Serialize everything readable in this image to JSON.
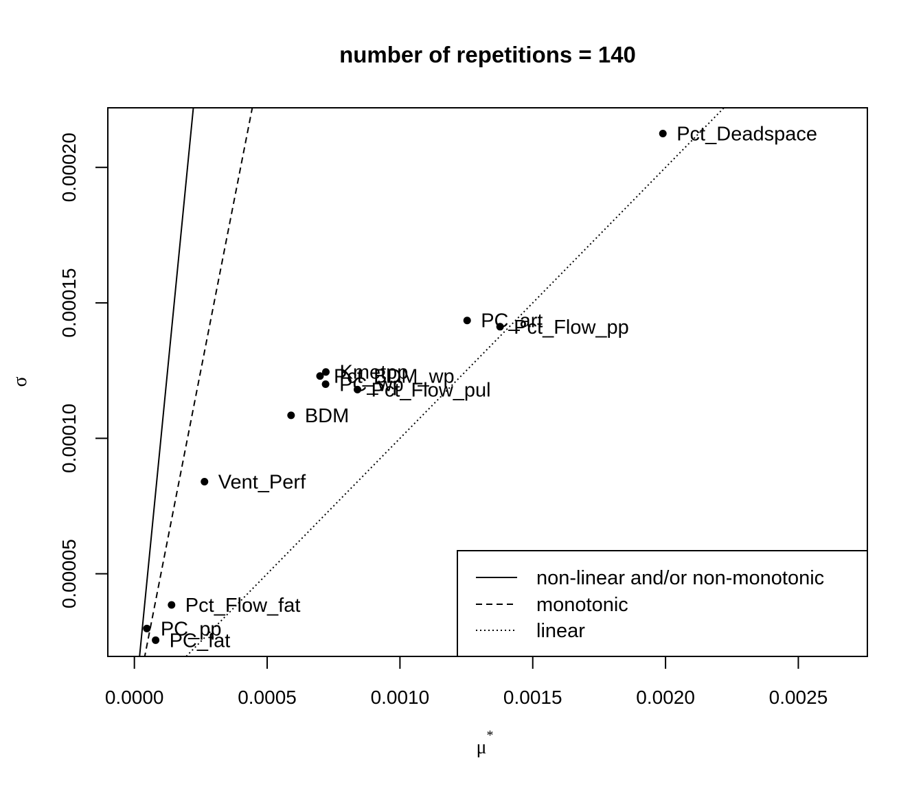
{
  "chart_data": {
    "type": "scatter",
    "title": "number of repetitions = 140",
    "xlabel": "μ",
    "xlabel_superscript": "*",
    "ylabel": "σ",
    "xlim": [
      -0.0001,
      0.00276
    ],
    "ylim": [
      1.95e-05,
      0.000222
    ],
    "x_ticks": [
      {
        "value": 0.0,
        "label": "0.0000"
      },
      {
        "value": 0.0005,
        "label": "0.0005"
      },
      {
        "value": 0.001,
        "label": "0.0010"
      },
      {
        "value": 0.0015,
        "label": "0.0015"
      },
      {
        "value": 0.002,
        "label": "0.0020"
      },
      {
        "value": 0.0025,
        "label": "0.0025"
      }
    ],
    "y_ticks": [
      {
        "value": 5e-05,
        "label": "0.00005"
      },
      {
        "value": 0.0001,
        "label": "0.00010"
      },
      {
        "value": 0.00015,
        "label": "0.00015"
      },
      {
        "value": 0.0002,
        "label": "0.00020"
      }
    ],
    "points": [
      {
        "label": "Pct_Deadspace",
        "x": 0.00199,
        "y": 0.0002125
      },
      {
        "label": "PC_art",
        "x": 0.001253,
        "y": 0.0001435
      },
      {
        "label": "Pct_Flow_pp",
        "x": 0.001377,
        "y": 0.0001412
      },
      {
        "label": "Kmetpp",
        "x": 0.000721,
        "y": 0.0001245
      },
      {
        "label": "Pct_BDM_wp",
        "x": 0.000699,
        "y": 0.000123
      },
      {
        "label": "PC_wp",
        "x": 0.00072,
        "y": 0.00012
      },
      {
        "label": "Pct_Flow_pul",
        "x": 0.00084,
        "y": 0.000118
      },
      {
        "label": "BDM",
        "x": 0.00059,
        "y": 0.0001085
      },
      {
        "label": "Vent_Perf",
        "x": 0.000264,
        "y": 8.4e-05
      },
      {
        "label": "Pct_Flow_fat",
        "x": 0.00014,
        "y": 3.85e-05
      },
      {
        "label": "PC_pp",
        "x": 4.7e-05,
        "y": 2.98e-05
      },
      {
        "label": "PC_fat",
        "x": 8e-05,
        "y": 2.55e-05
      }
    ],
    "reference_lines": [
      {
        "name": "non-linear and/or non-monotonic",
        "style": "solid",
        "slope": 1
      },
      {
        "name": "monotonic",
        "style": "dashed",
        "slope": 0.5
      },
      {
        "name": "linear",
        "style": "dotted",
        "slope": 0.1
      }
    ],
    "legend": {
      "placement": "bottom-right",
      "entries": [
        "non-linear and/or non-monotonic",
        "monotonic",
        "linear"
      ]
    },
    "grid": false,
    "colors": {
      "ink": "#000000",
      "background": "#ffffff"
    }
  }
}
